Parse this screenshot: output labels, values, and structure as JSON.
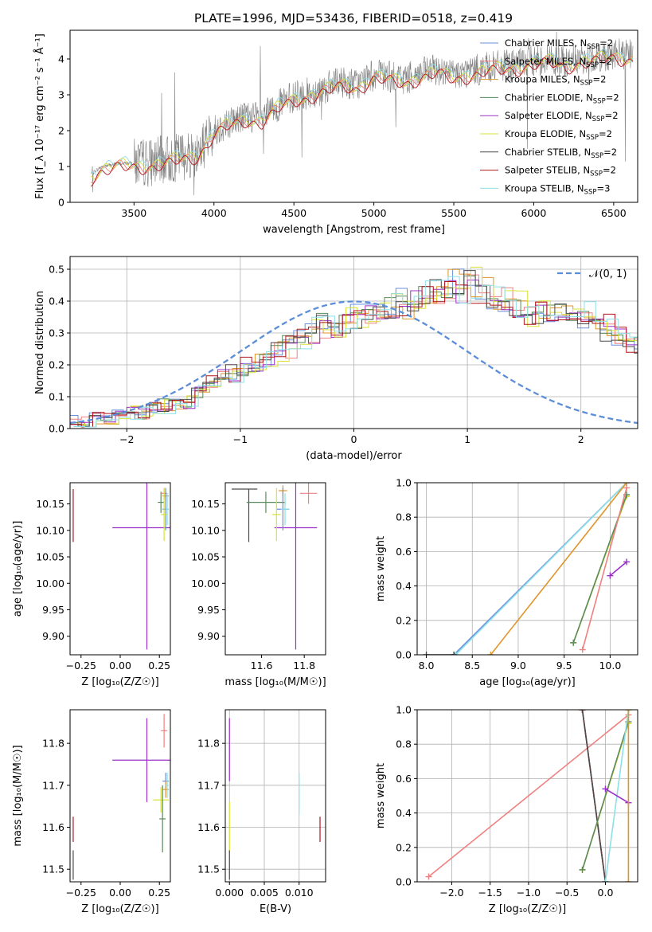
{
  "title": "PLATE=1996, MJD=53436, FIBERID=0518, z=0.419",
  "colors": {
    "Chabrier MILES": "#6a8fd9",
    "Salpeter MILES": "#f08080",
    "Kroupa MILES": "#e0952a",
    "Chabrier ELODIE": "#5a8a5a",
    "Salpeter ELODIE": "#9b30c8",
    "Kroupa ELODIE": "#d9e23a",
    "Chabrier STELIB": "#4a4a4a",
    "Salpeter STELIB": "#b0161c",
    "Kroupa STELIB": "#8ce0e8",
    "gaussian": "#5b8dd9",
    "data": "#808080"
  },
  "chart_data": [
    {
      "id": "spectrum",
      "type": "line",
      "xlabel": "wavelength [Angstrom, rest frame]",
      "ylabel": "Flux [f_λ 10⁻¹⁷ erg cm⁻² s⁻¹ Å⁻¹]",
      "xlim": [
        3100,
        6650
      ],
      "ylim": [
        0,
        4.8
      ],
      "xticks": [
        3500,
        4000,
        4500,
        5000,
        5500,
        6000,
        6500
      ],
      "yticks": [
        0,
        1,
        2,
        3,
        4
      ],
      "x": [
        3200,
        3300,
        3400,
        3500,
        3600,
        3700,
        3800,
        3900,
        4000,
        4100,
        4200,
        4300,
        4400,
        4500,
        4600,
        4700,
        4800,
        4900,
        5000,
        5100,
        5200,
        5300,
        5400,
        5500,
        5600,
        5700,
        5800,
        5900,
        6000,
        6100,
        6200,
        6300,
        6400,
        6500,
        6600
      ],
      "model_flux": [
        0.7,
        1.0,
        1.08,
        1.1,
        1.12,
        1.18,
        1.3,
        1.4,
        2.0,
        2.25,
        2.4,
        2.35,
        2.7,
        2.95,
        3.05,
        3.2,
        3.35,
        3.3,
        3.55,
        3.5,
        3.45,
        3.6,
        3.7,
        3.55,
        3.65,
        3.75,
        3.8,
        3.85,
        3.95,
        4.0,
        3.9,
        4.0,
        4.05,
        4.15,
        4.1
      ],
      "legend": [
        {
          "label": "Chabrier MILES, N",
          "sub": "SSP",
          "eq": "=2",
          "color_key": "Chabrier MILES"
        },
        {
          "label": "Salpeter MILES, N",
          "sub": "SSP",
          "eq": "=2",
          "color_key": "Salpeter MILES"
        },
        {
          "label": "Kroupa MILES, N",
          "sub": "SSP",
          "eq": "=2",
          "color_key": "Kroupa MILES"
        },
        {
          "label": "Chabrier ELODIE, N",
          "sub": "SSP",
          "eq": "=2",
          "color_key": "Chabrier ELODIE"
        },
        {
          "label": "Salpeter ELODIE, N",
          "sub": "SSP",
          "eq": "=2",
          "color_key": "Salpeter ELODIE"
        },
        {
          "label": "Kroupa ELODIE, N",
          "sub": "SSP",
          "eq": "=2",
          "color_key": "Kroupa ELODIE"
        },
        {
          "label": "Chabrier STELIB, N",
          "sub": "SSP",
          "eq": "=2",
          "color_key": "Chabrier STELIB"
        },
        {
          "label": "Salpeter STELIB, N",
          "sub": "SSP",
          "eq": "=2",
          "color_key": "Salpeter STELIB"
        },
        {
          "label": "Kroupa STELIB, N",
          "sub": "SSP",
          "eq": "=3",
          "color_key": "Kroupa STELIB"
        }
      ],
      "legend_loc": "right"
    },
    {
      "id": "residuals",
      "type": "line",
      "xlabel": "(data-model)/error",
      "ylabel": "Normed distribution",
      "xlim": [
        -2.5,
        2.5
      ],
      "ylim": [
        0,
        0.54
      ],
      "xticks": [
        -2,
        -1,
        0,
        1,
        2
      ],
      "yticks": [
        0.0,
        0.1,
        0.2,
        0.3,
        0.4,
        0.5
      ],
      "grid": true,
      "legend_label": "𝒩(0, 1)",
      "legend_loc": "top-right",
      "bin_width": 0.1,
      "hist_envelope": [
        0.02,
        0.02,
        0.03,
        0.03,
        0.04,
        0.05,
        0.05,
        0.06,
        0.07,
        0.08,
        0.09,
        0.12,
        0.14,
        0.16,
        0.17,
        0.19,
        0.2,
        0.22,
        0.24,
        0.26,
        0.28,
        0.3,
        0.32,
        0.33,
        0.34,
        0.35,
        0.36,
        0.37,
        0.38,
        0.39,
        0.4,
        0.41,
        0.42,
        0.44,
        0.45,
        0.44,
        0.42,
        0.4,
        0.39,
        0.38,
        0.37,
        0.36,
        0.35,
        0.36,
        0.36,
        0.35,
        0.33,
        0.31,
        0.29,
        0.27,
        0.25,
        0.23,
        0.21,
        0.19,
        0.17,
        0.15,
        0.13,
        0.12,
        0.11,
        0.1,
        0.09,
        0.08,
        0.07,
        0.07,
        0.06,
        0.06,
        0.05,
        0.05,
        0.05,
        0.04,
        0.04,
        0.04,
        0.03,
        0.03,
        0.03,
        0.03,
        0.03,
        0.03,
        0.03,
        0.03,
        0.03,
        0.03,
        0.03,
        0.03,
        0.03,
        0.03,
        0.03,
        0.03,
        0.03,
        0.03,
        0.03,
        0.03,
        0.03,
        0.03,
        0.03,
        0.03,
        0.03,
        0.03,
        0.03,
        0.03
      ]
    },
    {
      "id": "age_vs_Z",
      "type": "scatter",
      "xlabel": "Z [log₁₀(Z/Z☉)]",
      "ylabel": "age  [log₁₀(age/yr)]",
      "xlim": [
        -0.32,
        0.32
      ],
      "ylim": [
        9.865,
        10.19
      ],
      "xticks": [
        -0.25,
        0.0,
        0.25
      ],
      "xtick_labels": [
        "−0.25",
        "0.00",
        "0.25"
      ],
      "yticks": [
        9.9,
        9.95,
        10.0,
        10.05,
        10.1,
        10.15
      ],
      "points": [
        {
          "c": "Salpeter STELIB",
          "x": -0.3,
          "y": 10.128,
          "xerr": 0.0,
          "yerr": 0.05
        },
        {
          "c": "Salpeter ELODIE",
          "x": 0.17,
          "y": 10.105,
          "xerr": 0.22,
          "yerr": 0.23
        },
        {
          "c": "Chabrier ELODIE",
          "x": 0.26,
          "y": 10.153,
          "xerr": 0.02,
          "yerr": 0.02
        },
        {
          "c": "Salpeter MILES",
          "x": 0.28,
          "y": 10.17,
          "xerr": 0.02,
          "yerr": 0.01
        },
        {
          "c": "Kroupa MILES",
          "x": 0.29,
          "y": 10.165,
          "xerr": 0.02,
          "yerr": 0.01
        },
        {
          "c": "Chabrier MILES",
          "x": 0.29,
          "y": 10.14,
          "xerr": 0.02,
          "yerr": 0.04
        },
        {
          "c": "Kroupa ELODIE",
          "x": 0.28,
          "y": 10.13,
          "xerr": 0.02,
          "yerr": 0.05
        },
        {
          "c": "Kroupa STELIB",
          "x": 0.3,
          "y": 10.14,
          "xerr": 0.01,
          "yerr": 0.03
        }
      ]
    },
    {
      "id": "age_vs_mass",
      "type": "scatter",
      "xlabel": "mass [log₁₀(M/M☉)]",
      "ylabel": "",
      "xlim": [
        11.43,
        11.9
      ],
      "ylim": [
        9.865,
        10.19
      ],
      "xticks": [
        11.6,
        11.8
      ],
      "yticks": [
        9.9,
        9.95,
        10.0,
        10.05,
        10.1,
        10.15
      ],
      "points": [
        {
          "c": "Chabrier STELIB",
          "x": 11.52,
          "y": 10.178,
          "xerr": 0.06,
          "yerr": 0.0
        },
        {
          "c": "Chabrier STELIB",
          "x": 11.54,
          "y": 10.128,
          "xerr": 0.0,
          "yerr": 0.05
        },
        {
          "c": "Salpeter ELODIE",
          "x": 11.76,
          "y": 10.105,
          "xerr": 0.1,
          "yerr": 0.23
        },
        {
          "c": "Chabrier ELODIE",
          "x": 11.62,
          "y": 10.153,
          "xerr": 0.09,
          "yerr": 0.02
        },
        {
          "c": "Salpeter MILES",
          "x": 11.82,
          "y": 10.17,
          "xerr": 0.04,
          "yerr": 0.02
        },
        {
          "c": "Kroupa MILES",
          "x": 11.7,
          "y": 10.175,
          "xerr": 0.02,
          "yerr": 0.01
        },
        {
          "c": "Chabrier MILES",
          "x": 11.7,
          "y": 10.14,
          "xerr": 0.03,
          "yerr": 0.04
        },
        {
          "c": "Kroupa ELODIE",
          "x": 11.67,
          "y": 10.13,
          "xerr": 0.02,
          "yerr": 0.05
        },
        {
          "c": "Kroupa STELIB",
          "x": 11.71,
          "y": 10.14,
          "xerr": 0.02,
          "yerr": 0.03
        }
      ]
    },
    {
      "id": "weight_vs_age",
      "type": "line",
      "xlabel": "age  [log₁₀(age/yr)]",
      "ylabel": "mass weight",
      "xlim": [
        7.9,
        10.3
      ],
      "ylim": [
        0,
        1.0
      ],
      "xticks": [
        8.0,
        8.5,
        9.0,
        9.5,
        10.0
      ],
      "yticks": [
        0.0,
        0.2,
        0.4,
        0.6,
        0.8,
        1.0
      ],
      "grid": true,
      "series": [
        {
          "c": "Chabrier MILES",
          "x": [
            8.3,
            10.18
          ],
          "y": [
            0.0,
            1.0
          ]
        },
        {
          "c": "Kroupa STELIB",
          "x": [
            8.32,
            10.18
          ],
          "y": [
            0.0,
            1.0
          ]
        },
        {
          "c": "Kroupa MILES",
          "x": [
            8.7,
            10.18
          ],
          "y": [
            0.0,
            1.0
          ]
        },
        {
          "c": "Kroupa ELODIE",
          "x": [
            9.6,
            10.18
          ],
          "y": [
            0.07,
            0.92
          ]
        },
        {
          "c": "Chabrier ELODIE",
          "x": [
            9.6,
            10.18
          ],
          "y": [
            0.07,
            0.93
          ]
        },
        {
          "c": "Salpeter MILES",
          "x": [
            9.7,
            10.18
          ],
          "y": [
            0.03,
            0.97
          ]
        },
        {
          "c": "Salpeter ELODIE",
          "x": [
            10.0,
            10.18
          ],
          "y": [
            0.46,
            0.54
          ]
        },
        {
          "c": "Chabrier STELIB",
          "x": [
            8.0,
            8.3
          ],
          "y": [
            0.0,
            0.0
          ]
        }
      ]
    },
    {
      "id": "mass_vs_Z",
      "type": "scatter",
      "xlabel": "Z [log₁₀(Z/Z☉)]",
      "ylabel": "mass [log₁₀(M/M☉)]",
      "xlim": [
        -0.32,
        0.32
      ],
      "ylim": [
        11.47,
        11.88
      ],
      "xticks": [
        -0.25,
        0.0,
        0.25
      ],
      "xtick_labels": [
        "−0.25",
        "0.00",
        "0.25"
      ],
      "yticks": [
        11.5,
        11.6,
        11.7,
        11.8
      ],
      "points": [
        {
          "c": "Salpeter STELIB",
          "x": -0.3,
          "y": 11.595,
          "xerr": 0.0,
          "yerr": 0.03
        },
        {
          "c": "Chabrier STELIB",
          "x": -0.3,
          "y": 11.51,
          "xerr": 0.0,
          "yerr": 0.035
        },
        {
          "c": "Salpeter ELODIE",
          "x": 0.17,
          "y": 11.76,
          "xerr": 0.22,
          "yerr": 0.1
        },
        {
          "c": "Salpeter MILES",
          "x": 0.28,
          "y": 11.83,
          "xerr": 0.02,
          "yerr": 0.04
        },
        {
          "c": "Chabrier MILES",
          "x": 0.29,
          "y": 11.71,
          "xerr": 0.02,
          "yerr": 0.02
        },
        {
          "c": "Kroupa MILES",
          "x": 0.29,
          "y": 11.69,
          "xerr": 0.02,
          "yerr": 0.02
        },
        {
          "c": "Kroupa ELODIE",
          "x": 0.26,
          "y": 11.665,
          "xerr": 0.05,
          "yerr": 0.03
        },
        {
          "c": "Chabrier ELODIE",
          "x": 0.27,
          "y": 11.62,
          "xerr": 0.02,
          "yerr": 0.08
        },
        {
          "c": "Kroupa STELIB",
          "x": 0.3,
          "y": 11.7,
          "xerr": 0.01,
          "yerr": 0.03
        }
      ]
    },
    {
      "id": "mass_vs_ebv",
      "type": "scatter",
      "xlabel": "E(B-V)",
      "ylabel": "",
      "xlim": [
        -0.0006,
        0.0138
      ],
      "ylim": [
        11.47,
        11.88
      ],
      "xticks": [
        0.0,
        0.005,
        0.01
      ],
      "xtick_labels": [
        "0.000",
        "0.005",
        "0.010"
      ],
      "yticks": [
        11.5,
        11.6,
        11.7,
        11.8
      ],
      "grid": true,
      "points": [
        {
          "c": "Salpeter ELODIE",
          "x": 0.0,
          "y": 11.785,
          "xerr": 0,
          "yerr": 0.075
        },
        {
          "c": "Kroupa ELODIE",
          "x": 0.0,
          "y": 11.6,
          "xerr": 0,
          "yerr": 0.06
        },
        {
          "c": "Chabrier STELIB",
          "x": 0.0,
          "y": 11.51,
          "xerr": 0,
          "yerr": 0.035
        },
        {
          "c": "Kroupa STELIB",
          "x": 0.01,
          "y": 11.68,
          "xerr": 0,
          "yerr": 0.05
        },
        {
          "c": "Salpeter STELIB",
          "x": 0.013,
          "y": 11.595,
          "xerr": 0,
          "yerr": 0.03
        }
      ]
    },
    {
      "id": "weight_vs_Z",
      "type": "line",
      "xlabel": "Z [log₁₀(Z/Z☉)]",
      "ylabel": "mass weight",
      "xlim": [
        -2.45,
        0.42
      ],
      "ylim": [
        0,
        1.0
      ],
      "xticks": [
        -2.0,
        -1.5,
        -1.0,
        -0.5,
        0.0
      ],
      "xtick_labels": [
        "−2.0",
        "−1.5",
        "−1.0",
        "−0.5",
        "0.0"
      ],
      "yticks": [
        0.0,
        0.2,
        0.4,
        0.6,
        0.8,
        1.0
      ],
      "grid": true,
      "series": [
        {
          "c": "Salpeter MILES",
          "x": [
            -2.3,
            0.3
          ],
          "y": [
            0.03,
            0.97
          ]
        },
        {
          "c": "Salpeter STELIB",
          "x": [
            -0.3,
            0.0
          ],
          "y": [
            1.0,
            0.0
          ]
        },
        {
          "c": "Chabrier STELIB",
          "x": [
            -0.3,
            0.0
          ],
          "y": [
            1.0,
            0.0
          ]
        },
        {
          "c": "Kroupa ELODIE",
          "x": [
            -0.3,
            0.3
          ],
          "y": [
            0.07,
            0.92
          ]
        },
        {
          "c": "Chabrier ELODIE",
          "x": [
            -0.3,
            0.3
          ],
          "y": [
            0.07,
            0.93
          ]
        },
        {
          "c": "Kroupa STELIB",
          "x": [
            0.0,
            0.3
          ],
          "y": [
            0.0,
            1.0
          ]
        },
        {
          "c": "Salpeter ELODIE",
          "x": [
            0.0,
            0.3
          ],
          "y": [
            0.54,
            0.46
          ]
        },
        {
          "c": "Kroupa MILES",
          "x": [
            0.3,
            0.3
          ],
          "y": [
            0.0,
            1.0
          ]
        }
      ]
    }
  ]
}
